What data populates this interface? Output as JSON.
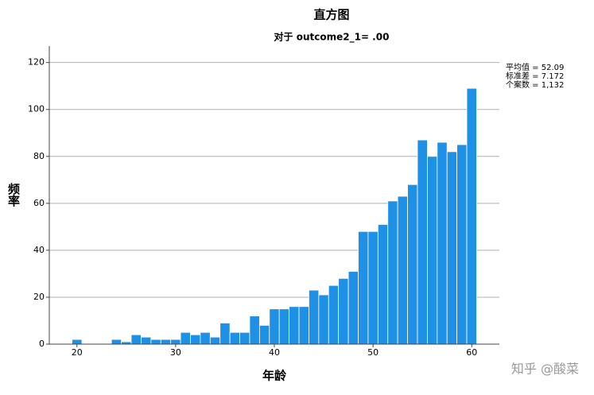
{
  "chart_data": {
    "type": "histogram",
    "title": "直方图",
    "subtitle": "对于 outcome2_1= .00",
    "x_label": "年龄",
    "y_label": "频率",
    "stats": [
      "平均值 = 52.09",
      "标准差 = 7.172",
      "个案数 = 1,132"
    ],
    "watermark": "知乎 @酸菜",
    "color": "#1e90e6",
    "bins": [
      19.5,
      20.5,
      21.5,
      22.5,
      23.5,
      24.5,
      25.5,
      26.5,
      27.5,
      28.5,
      29.5,
      30.5,
      31.5,
      32.5,
      33.5,
      34.5,
      35.5,
      36.5,
      37.5,
      38.5,
      39.5,
      40.5,
      41.5,
      42.5,
      43.5,
      44.5,
      45.5,
      46.5,
      47.5,
      48.5,
      49.5,
      50.5,
      51.5,
      52.5,
      53.5,
      54.5,
      55.5,
      56.5,
      57.5,
      58.5,
      59.5,
      60.5
    ],
    "values": [
      2,
      0,
      0,
      0,
      2,
      1,
      4,
      3,
      2,
      2,
      2,
      5,
      4,
      5,
      3,
      9,
      5,
      5,
      12,
      8,
      15,
      15,
      16,
      16,
      23,
      21,
      25,
      28,
      31,
      48,
      48,
      51,
      61,
      63,
      68,
      87,
      80,
      86,
      82,
      85,
      109
    ],
    "xlim": [
      17.2,
      62.8
    ],
    "xticks": [
      20,
      30,
      40,
      50,
      60
    ],
    "ylim": [
      0,
      127
    ],
    "yticks": [
      0,
      20,
      40,
      60,
      80,
      100,
      120
    ],
    "grid": true
  }
}
